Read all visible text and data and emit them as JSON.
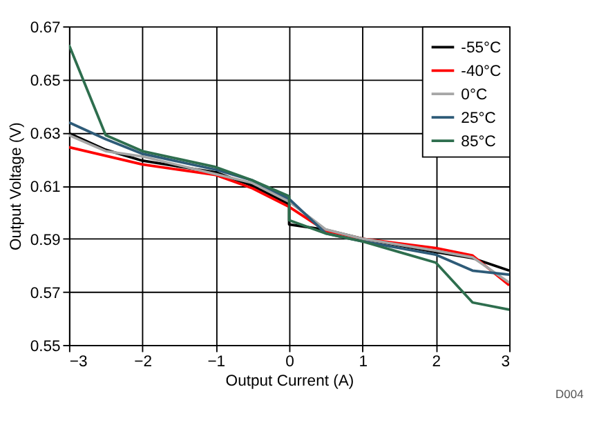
{
  "chart_data": {
    "type": "line",
    "xlabel": "Output Current (A)",
    "ylabel": "Output Voltage (V)",
    "xlim": [
      -3,
      3
    ],
    "xticks": [
      -3,
      -2,
      -1,
      0,
      1,
      2,
      3
    ],
    "ylim": [
      0.55,
      0.67
    ],
    "yticks": [
      0.55,
      0.57,
      0.59,
      0.61,
      0.63,
      0.65,
      0.67
    ],
    "grid": true,
    "legend": "top right",
    "marker": "none",
    "line_style": "solid",
    "annotations": [
      "D004"
    ],
    "series": [
      {
        "name": "-55°C",
        "color": "#000000",
        "x": [
          -3,
          -2.5,
          -2,
          -1,
          -0.5,
          0,
          0,
          0.5,
          1,
          2,
          2.5,
          3
        ],
        "values": [
          0.6297,
          0.6235,
          0.6194,
          0.615,
          0.61,
          0.603,
          0.5954,
          0.5934,
          0.59,
          0.585,
          0.5827,
          0.578
        ]
      },
      {
        "name": "-40°C",
        "color": "#ff0000",
        "x": [
          -3,
          -2,
          -1,
          -0.5,
          0,
          0.5,
          1,
          2,
          2.5,
          3
        ],
        "values": [
          0.6245,
          0.618,
          0.614,
          0.609,
          0.602,
          0.593,
          0.59,
          0.5865,
          0.5837,
          0.5725
        ]
      },
      {
        "name": "0°C",
        "color": "#a6a6a6",
        "x": [
          -3,
          -2.5,
          -2,
          -0.5,
          0,
          0.5,
          1,
          2,
          2.5,
          3
        ],
        "values": [
          0.629,
          0.623,
          0.621,
          0.611,
          0.604,
          0.5935,
          0.59,
          0.5855,
          0.583,
          0.5735
        ]
      },
      {
        "name": "25°C",
        "color": "#2e5b78",
        "x": [
          -3,
          -2.5,
          -2,
          -1,
          -0.5,
          0,
          0.5,
          1,
          2,
          2.5,
          3
        ],
        "values": [
          0.6338,
          0.6275,
          0.622,
          0.616,
          0.612,
          0.605,
          0.592,
          0.589,
          0.584,
          0.578,
          0.5765
        ]
      },
      {
        "name": "85°C",
        "color": "#2e6e4e",
        "x": [
          -3,
          -2.5,
          -2,
          -1,
          -0.5,
          0,
          0,
          0.5,
          1,
          1.5,
          2,
          2.5,
          3
        ],
        "values": [
          0.663,
          0.629,
          0.623,
          0.617,
          0.612,
          0.606,
          0.597,
          0.592,
          0.589,
          0.585,
          0.581,
          0.566,
          0.5633
        ]
      }
    ]
  }
}
